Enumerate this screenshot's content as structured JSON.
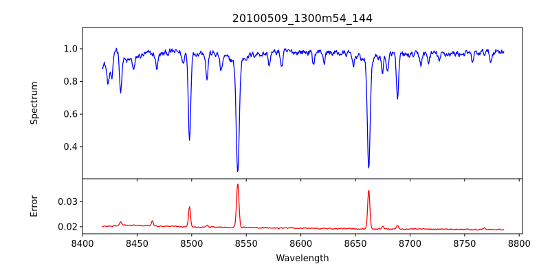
{
  "title": "20100509_1300m54_144",
  "chart_data": [
    {
      "type": "line",
      "panel": "spectrum",
      "title": "20100509_1300m54_144",
      "xlabel": "",
      "ylabel": "Spectrum",
      "xlim": [
        8400,
        8803
      ],
      "ylim": [
        0.205,
        1.13
      ],
      "x_ticks": [
        8400,
        8450,
        8500,
        8550,
        8600,
        8650,
        8700,
        8750,
        8800
      ],
      "y_ticks": [
        0.4,
        0.6,
        0.8,
        1.0
      ],
      "y_tick_labels": [
        "0.4",
        "0.6",
        "0.8",
        "1.0"
      ],
      "show_x_tick_labels": false,
      "grid": false,
      "color": "#0000ff",
      "x_range": [
        8418,
        8786
      ],
      "continuum": [
        [
          8418,
          0.9
        ],
        [
          8425,
          0.93
        ],
        [
          8431,
          1.0
        ],
        [
          8440,
          0.92
        ],
        [
          8450,
          0.95
        ],
        [
          8460,
          0.97
        ],
        [
          8470,
          0.96
        ],
        [
          8480,
          0.98
        ],
        [
          8490,
          0.98
        ],
        [
          8500,
          0.97
        ],
        [
          8510,
          0.98
        ],
        [
          8520,
          0.97
        ],
        [
          8530,
          0.95
        ],
        [
          8540,
          0.92
        ],
        [
          8550,
          0.95
        ],
        [
          8560,
          0.97
        ],
        [
          8570,
          0.97
        ],
        [
          8580,
          0.98
        ],
        [
          8600,
          0.98
        ],
        [
          8620,
          0.98
        ],
        [
          8640,
          0.97
        ],
        [
          8650,
          0.96
        ],
        [
          8660,
          0.93
        ],
        [
          8670,
          0.95
        ],
        [
          8680,
          0.97
        ],
        [
          8700,
          0.96
        ],
        [
          8720,
          0.97
        ],
        [
          8740,
          0.97
        ],
        [
          8760,
          0.97
        ],
        [
          8786,
          0.99
        ]
      ],
      "absorption_lines": [
        {
          "center": 8498.0,
          "depth": 0.52,
          "width": 1.1
        },
        {
          "center": 8542.2,
          "depth": 0.68,
          "width": 1.4
        },
        {
          "center": 8662.2,
          "depth": 0.66,
          "width": 1.3
        },
        {
          "center": 8423.5,
          "depth": 0.14,
          "width": 1.2
        },
        {
          "center": 8427.0,
          "depth": 0.14,
          "width": 1.0
        },
        {
          "center": 8435.0,
          "depth": 0.23,
          "width": 1.0
        },
        {
          "center": 8447.0,
          "depth": 0.07,
          "width": 1.0
        },
        {
          "center": 8468.0,
          "depth": 0.08,
          "width": 1.0
        },
        {
          "center": 8492.0,
          "depth": 0.07,
          "width": 1.0
        },
        {
          "center": 8514.0,
          "depth": 0.16,
          "width": 1.0
        },
        {
          "center": 8527.0,
          "depth": 0.1,
          "width": 1.0
        },
        {
          "center": 8571.0,
          "depth": 0.07,
          "width": 0.9
        },
        {
          "center": 8582.5,
          "depth": 0.09,
          "width": 1.0
        },
        {
          "center": 8611.5,
          "depth": 0.07,
          "width": 1.0
        },
        {
          "center": 8621.5,
          "depth": 0.06,
          "width": 0.9
        },
        {
          "center": 8648.0,
          "depth": 0.06,
          "width": 0.9
        },
        {
          "center": 8674.7,
          "depth": 0.1,
          "width": 1.0
        },
        {
          "center": 8679.5,
          "depth": 0.12,
          "width": 1.0
        },
        {
          "center": 8688.6,
          "depth": 0.29,
          "width": 1.0
        },
        {
          "center": 8710.0,
          "depth": 0.06,
          "width": 0.9
        },
        {
          "center": 8717.0,
          "depth": 0.05,
          "width": 0.9
        },
        {
          "center": 8727.0,
          "depth": 0.05,
          "width": 0.9
        },
        {
          "center": 8757.0,
          "depth": 0.05,
          "width": 0.9
        },
        {
          "center": 8774.0,
          "depth": 0.06,
          "width": 0.9
        }
      ],
      "noise_amplitude": 0.035
    },
    {
      "type": "line",
      "panel": "error",
      "title": "",
      "xlabel": "Wavelength",
      "ylabel": "Error",
      "xlim": [
        8400,
        8803
      ],
      "ylim": [
        0.0172,
        0.0392
      ],
      "x_ticks": [
        8400,
        8450,
        8500,
        8550,
        8600,
        8650,
        8700,
        8750,
        8800
      ],
      "x_tick_labels": [
        "8400",
        "8450",
        "8500",
        "8550",
        "8600",
        "8650",
        "8700",
        "8750",
        "8800"
      ],
      "y_ticks": [
        0.02,
        0.03
      ],
      "y_tick_labels": [
        "0.02",
        "0.03"
      ],
      "grid": false,
      "color": "#ff0000",
      "x_range": [
        8418,
        8786
      ],
      "baseline": [
        [
          8418,
          0.0201
        ],
        [
          8440,
          0.0206
        ],
        [
          8470,
          0.0203
        ],
        [
          8500,
          0.02
        ],
        [
          8530,
          0.0198
        ],
        [
          8560,
          0.0196
        ],
        [
          8600,
          0.0194
        ],
        [
          8640,
          0.0192
        ],
        [
          8680,
          0.0191
        ],
        [
          8720,
          0.019
        ],
        [
          8760,
          0.0189
        ],
        [
          8786,
          0.0188
        ]
      ],
      "peaks": [
        {
          "center": 8498.0,
          "height": 0.008,
          "width": 0.9
        },
        {
          "center": 8542.2,
          "height": 0.0178,
          "width": 1.1
        },
        {
          "center": 8662.2,
          "height": 0.0155,
          "width": 1.0
        },
        {
          "center": 8435.0,
          "height": 0.0015,
          "width": 1.0
        },
        {
          "center": 8464.0,
          "height": 0.0018,
          "width": 0.9
        },
        {
          "center": 8514.0,
          "height": 0.0008,
          "width": 0.9
        },
        {
          "center": 8675.0,
          "height": 0.0012,
          "width": 0.9
        },
        {
          "center": 8688.6,
          "height": 0.0014,
          "width": 0.9
        },
        {
          "center": 8768.0,
          "height": 0.0008,
          "width": 0.9
        }
      ],
      "noise_amplitude": 0.0004
    }
  ]
}
